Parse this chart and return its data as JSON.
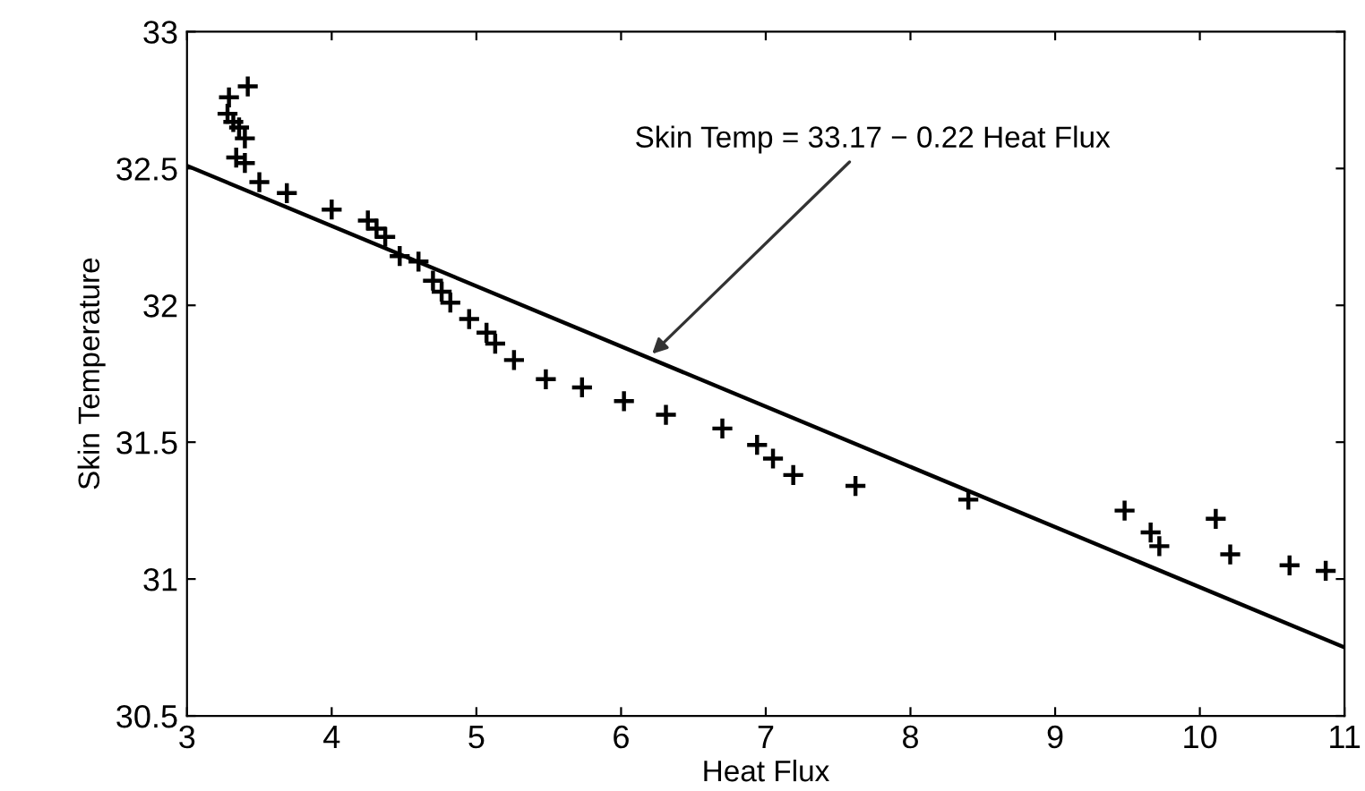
{
  "chart_data": {
    "type": "scatter",
    "xlabel": "Heat Flux",
    "ylabel": "Skin Temperature",
    "xlim": [
      3,
      11
    ],
    "ylim": [
      30.5,
      33
    ],
    "xticks": [
      3,
      4,
      5,
      6,
      7,
      8,
      9,
      10,
      11
    ],
    "yticks": [
      30.5,
      31,
      31.5,
      32,
      32.5,
      33
    ],
    "grid": false,
    "legend": false,
    "series": [
      {
        "color": "#000000",
        "marker": "cross",
        "x": [
          3.42,
          3.29,
          3.28,
          3.32,
          3.36,
          3.4,
          3.34,
          3.4,
          3.5,
          3.69,
          4.0,
          4.25,
          4.31,
          4.37,
          4.47,
          4.6,
          4.7,
          4.76,
          4.82,
          4.95,
          5.07,
          5.13,
          5.26,
          5.48,
          5.73,
          6.02,
          6.31,
          6.7,
          6.94,
          7.05,
          7.19,
          7.62,
          8.4,
          9.48,
          9.66,
          9.72,
          10.11,
          10.21,
          10.62,
          10.87
        ],
        "values": [
          32.8,
          32.76,
          32.7,
          32.67,
          32.65,
          32.61,
          32.54,
          32.52,
          32.45,
          32.41,
          32.35,
          32.31,
          32.28,
          32.25,
          32.18,
          32.16,
          32.09,
          32.05,
          32.01,
          31.95,
          31.9,
          31.86,
          31.8,
          31.73,
          31.7,
          31.65,
          31.6,
          31.55,
          31.49,
          31.44,
          31.38,
          31.34,
          31.29,
          31.25,
          31.17,
          31.12,
          31.22,
          31.09,
          31.05,
          31.03
        ]
      },
      {
        "type": "line",
        "color": "#000000",
        "line_style": "solid",
        "x": [
          3,
          11
        ],
        "values": [
          32.51,
          30.75
        ]
      }
    ],
    "annotations": [
      {
        "text": "Skin Temp = 33.17 − 0.22 Heat Flux",
        "x": 6.19,
        "y": 31.81
      }
    ]
  }
}
